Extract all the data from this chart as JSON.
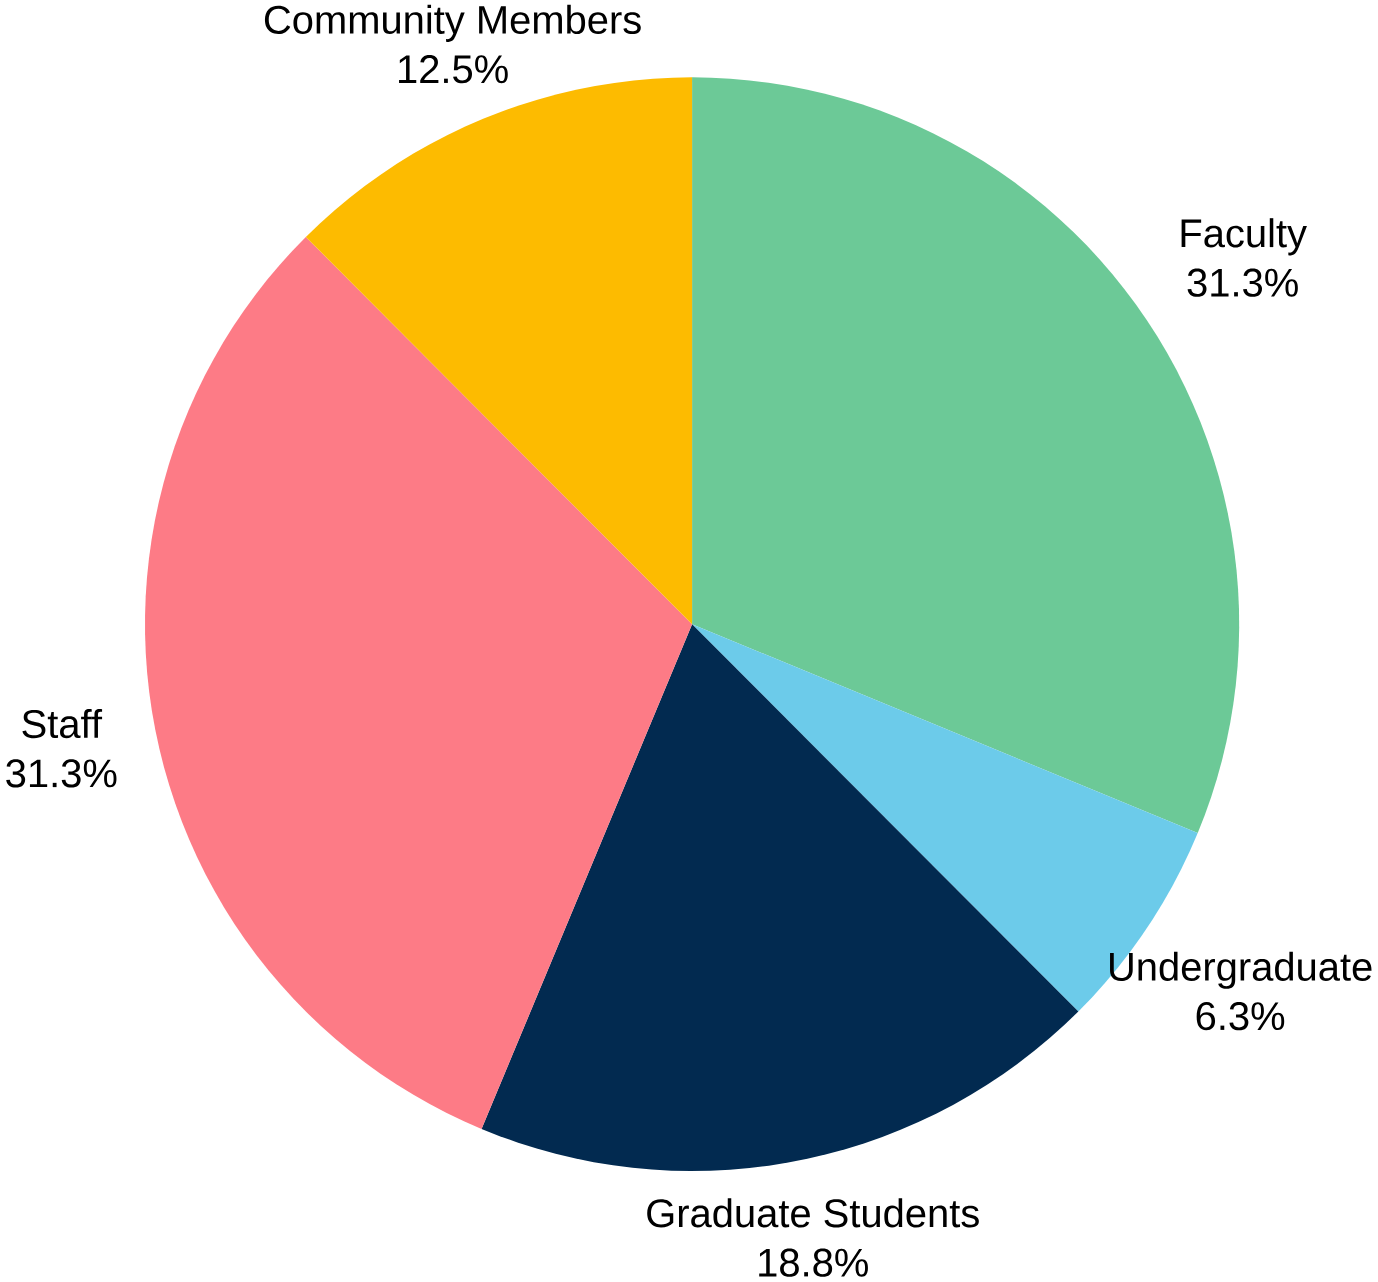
{
  "chart_data": {
    "type": "pie",
    "categories": [
      "Faculty",
      "Undergraduate",
      "Graduate Students",
      "Staff",
      "Community Members"
    ],
    "values": [
      31.3,
      6.3,
      18.8,
      31.3,
      12.5
    ],
    "value_labels": [
      "31.3%",
      "6.3%",
      "18.8%",
      "31.3%",
      "12.5%"
    ],
    "colors": [
      "#6cc997",
      "#6ccbea",
      "#022a50",
      "#fd7b86",
      "#fdbb00"
    ],
    "legend": false
  }
}
